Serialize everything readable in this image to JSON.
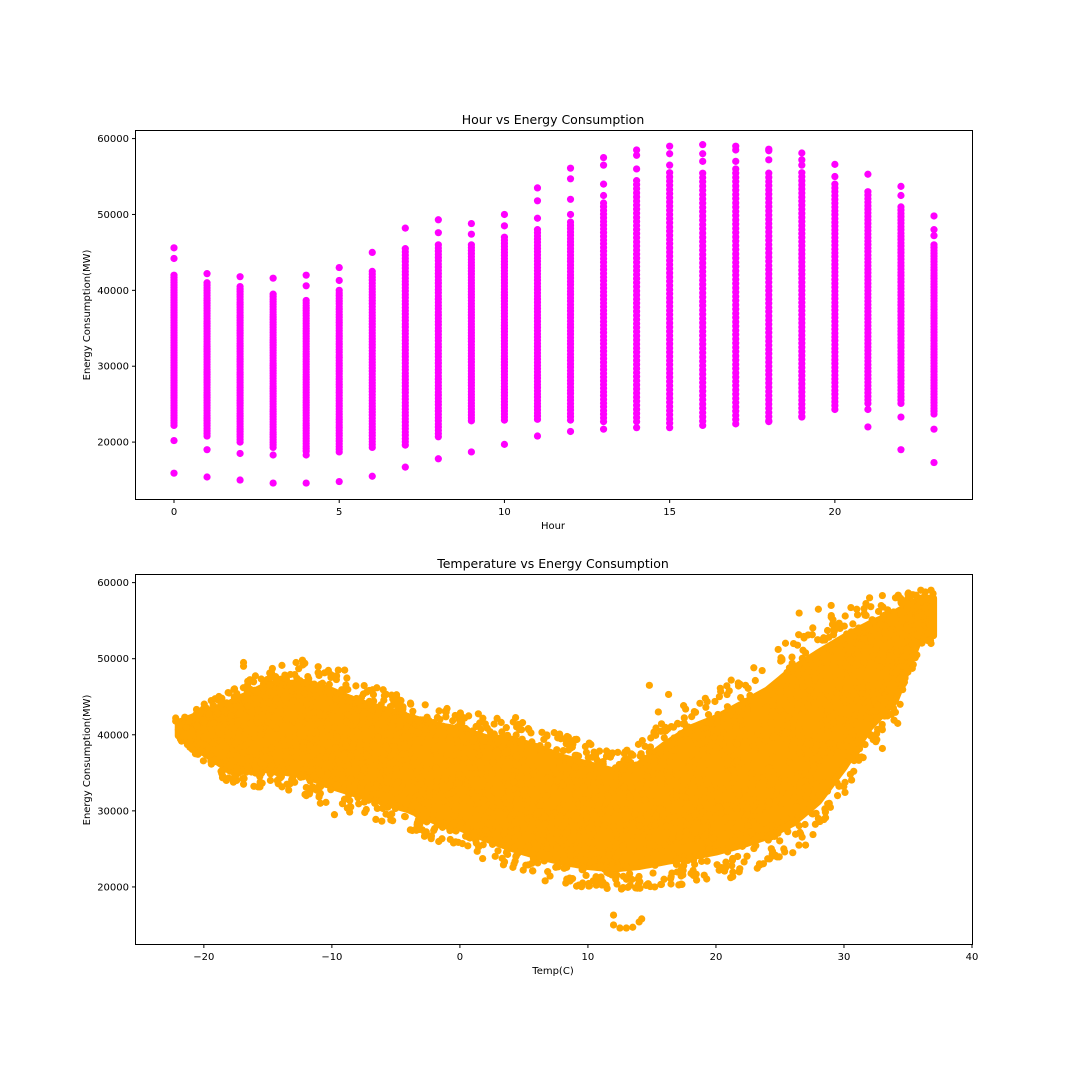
{
  "chart_data": [
    {
      "type": "scatter",
      "title": "Hour vs Energy Consumption",
      "xlabel": "Hour",
      "ylabel": "Energy Consumption(MW)",
      "xlim": [
        -1.15,
        24.15
      ],
      "ylim": [
        12500,
        61000
      ],
      "xticks": [
        0,
        5,
        10,
        15,
        20
      ],
      "xtick_labels": [
        "0",
        "5",
        "10",
        "15",
        "20"
      ],
      "yticks": [
        20000,
        30000,
        40000,
        50000,
        60000
      ],
      "ytick_labels": [
        "20000",
        "30000",
        "40000",
        "50000",
        "60000"
      ],
      "grid": false,
      "color": "#ff00ff",
      "series": [
        {
          "hours": [
            0,
            1,
            2,
            3,
            4,
            5,
            6,
            7,
            8,
            9,
            10,
            11,
            12,
            13,
            14,
            15,
            16,
            17,
            18,
            19,
            20,
            21,
            22,
            23
          ],
          "dense_min": [
            22200,
            20800,
            20000,
            19300,
            18800,
            18700,
            19300,
            19600,
            20700,
            22800,
            22900,
            23000,
            22900,
            22700,
            22700,
            22500,
            22200,
            22400,
            22800,
            23400,
            24300,
            25100,
            25100,
            23700
          ],
          "dense_max": [
            42000,
            41000,
            40500,
            39500,
            39000,
            40000,
            42500,
            45500,
            46000,
            46000,
            47000,
            48000,
            49000,
            52000,
            55000,
            55500,
            56000,
            56000,
            56000,
            55500,
            54500,
            53000,
            51000,
            46000
          ],
          "outliers": [
            [
              [
                15900,
                20200,
                44200,
                45600
              ]
            ],
            [
              [
                15400,
                19000,
                42200
              ]
            ],
            [
              [
                15000,
                18500,
                41800
              ]
            ],
            [
              [
                14600,
                18300,
                41600
              ]
            ],
            [
              [
                14600,
                18300,
                40600,
                42000
              ]
            ],
            [
              [
                14800,
                41300,
                43000
              ]
            ],
            [
              [
                15500,
                45000
              ]
            ],
            [
              [
                16700,
                48200
              ]
            ],
            [
              [
                17800,
                47600,
                49300
              ]
            ],
            [
              [
                18700,
                47400,
                48800
              ]
            ],
            [
              [
                19700,
                48500,
                50000
              ]
            ],
            [
              [
                20800,
                49500,
                51800,
                53500
              ]
            ],
            [
              [
                21400,
                50000,
                52000,
                54700,
                56100
              ]
            ],
            [
              [
                21700,
                52500,
                54000,
                56500,
                57500
              ]
            ],
            [
              [
                21900,
                56000,
                57800,
                58500
              ]
            ],
            [
              [
                21900,
                56500,
                58000,
                59000
              ]
            ],
            [
              [
                57000,
                58000,
                59200
              ]
            ],
            [
              [
                57000,
                58500,
                59000
              ]
            ],
            [
              [
                22700,
                57200,
                58400,
                58600
              ]
            ],
            [
              [
                23300,
                56500,
                57200,
                58100
              ]
            ],
            [
              [
                55000,
                56600
              ]
            ],
            [
              [
                22000,
                24300,
                55300
              ]
            ],
            [
              [
                19000,
                23300,
                52500,
                53700
              ]
            ],
            [
              [
                17300,
                21700,
                47200,
                48000,
                49800
              ]
            ]
          ]
        }
      ]
    },
    {
      "type": "scatter",
      "title": "Temperature vs Energy Consumption",
      "xlabel": "Temp(C)",
      "ylabel": "Energy Consumption(MW)",
      "xlim": [
        -25.3,
        40.0
      ],
      "ylim": [
        12500,
        61000
      ],
      "xticks": [
        -20,
        -10,
        0,
        10,
        20,
        30,
        40
      ],
      "xtick_labels": [
        "−20",
        "−10",
        "0",
        "10",
        "20",
        "30",
        "40"
      ],
      "yticks": [
        20000,
        30000,
        40000,
        50000,
        60000
      ],
      "ytick_labels": [
        "20000",
        "30000",
        "40000",
        "50000",
        "60000"
      ],
      "grid": false,
      "color": "#ffa500",
      "band": {
        "temps": [
          -22,
          -18,
          -15,
          -12,
          -10,
          -8,
          -6,
          -4,
          -2,
          0,
          2,
          4,
          6,
          8,
          10,
          12,
          14,
          16,
          18,
          20,
          22,
          24,
          26,
          28,
          30,
          32,
          34,
          36,
          37
        ],
        "upper": [
          42000,
          46000,
          49000,
          49500,
          48500,
          47000,
          46000,
          45000,
          44000,
          43500,
          42500,
          42500,
          41500,
          40000,
          39000,
          38000,
          39000,
          42000,
          44500,
          46000,
          48000,
          50000,
          53000,
          55000,
          56500,
          57500,
          58500,
          59000,
          59000
        ],
        "lower": [
          39500,
          33500,
          33000,
          32000,
          30500,
          29500,
          28500,
          27500,
          26000,
          25000,
          23500,
          22000,
          21000,
          20300,
          19800,
          19600,
          19800,
          20000,
          20300,
          20800,
          21500,
          22500,
          24000,
          27000,
          32000,
          38000,
          42000,
          52000,
          52000
        ]
      },
      "extra_points": [
        [
          12.0,
          15000
        ],
        [
          12.0,
          16300
        ],
        [
          12.5,
          14600
        ],
        [
          13.0,
          14600
        ],
        [
          13.5,
          14700
        ],
        [
          14.0,
          15400
        ],
        [
          14.2,
          15800
        ],
        [
          -22.2,
          42200
        ],
        [
          -22.2,
          41800
        ],
        [
          -21.0,
          39500
        ],
        [
          -21.0,
          40000
        ],
        [
          -20.0,
          42000
        ],
        [
          -20.0,
          40800
        ],
        [
          -20.0,
          39700
        ],
        [
          -18.3,
          38500
        ],
        [
          -18.0,
          36000
        ],
        [
          -17.6,
          34500
        ],
        [
          -16.9,
          33500
        ],
        [
          -16.9,
          49000
        ],
        [
          -16.9,
          49500
        ],
        [
          -15.5,
          35000
        ],
        [
          -14.8,
          34000
        ],
        [
          -13.5,
          33500
        ],
        [
          -12.8,
          49500
        ],
        [
          -12.3,
          49800
        ],
        [
          -9.5,
          48500
        ],
        [
          -9.0,
          48500
        ],
        [
          -12.0,
          32000
        ],
        [
          -10.9,
          31000
        ],
        [
          -9.8,
          29500
        ],
        [
          16.3,
          45300
        ],
        [
          17.0,
          41500
        ],
        [
          14.8,
          46500
        ],
        [
          15.5,
          43000
        ],
        [
          26.5,
          56000
        ],
        [
          28.0,
          56500
        ],
        [
          29.0,
          57000
        ],
        [
          31.0,
          56500
        ],
        [
          32.0,
          58000
        ],
        [
          33.0,
          58300
        ],
        [
          35.0,
          58500
        ],
        [
          36.0,
          59000
        ],
        [
          36.8,
          59000
        ],
        [
          36.8,
          52000
        ],
        [
          35.8,
          53000
        ],
        [
          34.2,
          41500
        ],
        [
          33.0,
          38200
        ],
        [
          31.5,
          37000
        ],
        [
          30.5,
          34800
        ],
        [
          29.5,
          32000
        ],
        [
          28.0,
          29000
        ],
        [
          27.0,
          25500
        ],
        [
          26.0,
          24500
        ],
        [
          25.3,
          25000
        ]
      ]
    }
  ]
}
